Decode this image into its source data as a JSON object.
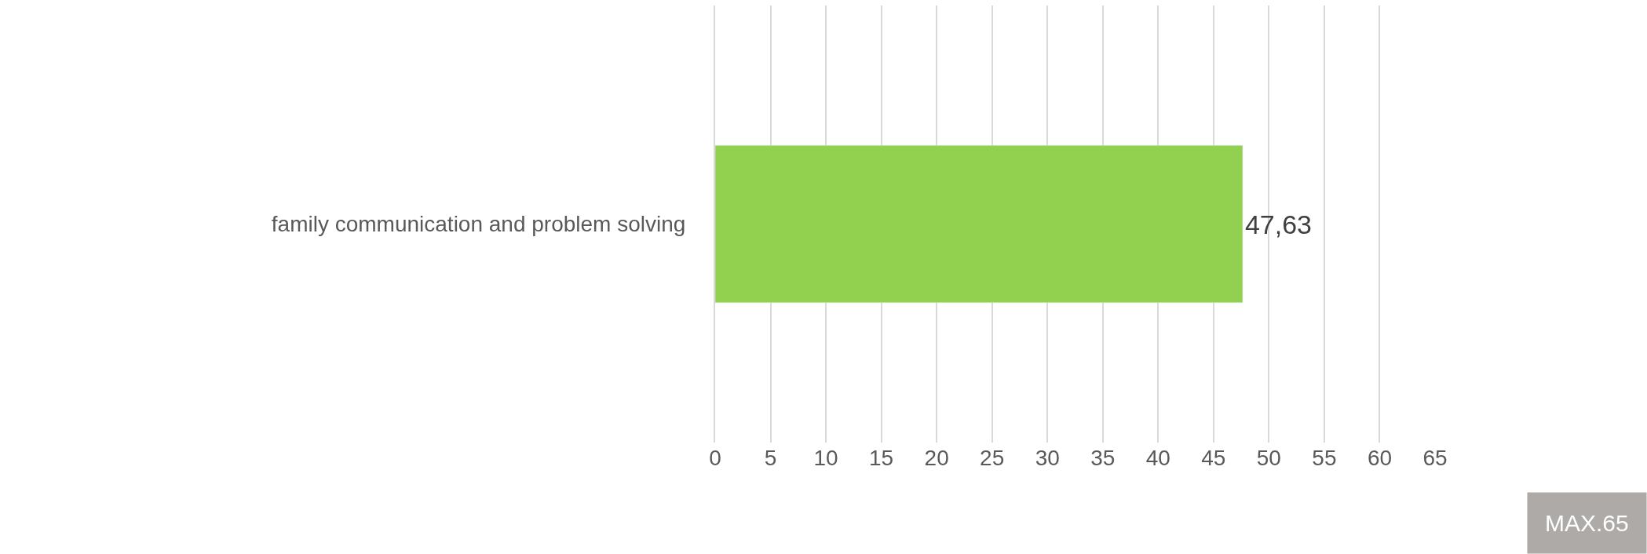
{
  "chart_data": {
    "type": "bar",
    "orientation": "horizontal",
    "categories": [
      "family communication and problem solving"
    ],
    "values": [
      47.63
    ],
    "value_labels": [
      "47,63"
    ],
    "color": "#92d050",
    "xlim": [
      0,
      65
    ],
    "xticks": [
      0,
      5,
      10,
      15,
      20,
      25,
      30,
      35,
      40,
      45,
      50,
      55,
      60,
      65
    ],
    "grid": "x",
    "legend": false,
    "annotations": [
      "MAX.65"
    ]
  }
}
